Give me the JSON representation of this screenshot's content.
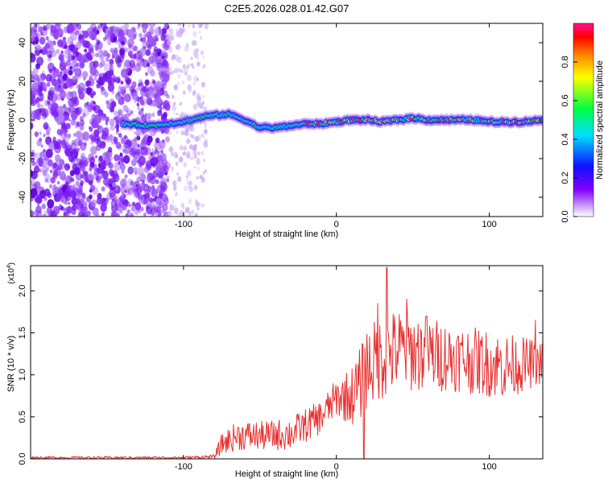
{
  "title": "C2E5.2026.028.01.42.G07",
  "chart_data": [
    {
      "type": "heatmap",
      "id": "spectrogram",
      "xlabel": "Height of straight line (km)",
      "ylabel": "Frequency (Hz)",
      "xlim": [
        -200,
        135
      ],
      "ylim": [
        -50,
        50
      ],
      "xticks": [
        -100,
        0,
        100
      ],
      "yticks": [
        -40,
        -20,
        0,
        20,
        40
      ],
      "colorbar": {
        "label": "Normalized spectral amplitude",
        "range": [
          0,
          1
        ],
        "ticks": [
          "0.0",
          "0.2",
          "0.4",
          "0.6",
          "0.8"
        ],
        "tick_values": [
          0.0,
          0.2,
          0.4,
          0.6,
          0.8
        ],
        "colors": [
          "#ffffff",
          "#d8b8f8",
          "#8000ff",
          "#1010ff",
          "#00e0ff",
          "#00ff40",
          "#ffff00",
          "#ff8000",
          "#ff0000",
          "#ff1090"
        ]
      },
      "noise_region": {
        "x_from": -200,
        "x_to": -110,
        "sparse_until": -85
      },
      "signal_band": {
        "start_x": -140,
        "centerline": [
          {
            "x": -140,
            "f": -2
          },
          {
            "x": -120,
            "f": -3
          },
          {
            "x": -100,
            "f": -1
          },
          {
            "x": -85,
            "f": 2
          },
          {
            "x": -70,
            "f": 3
          },
          {
            "x": -60,
            "f": 0
          },
          {
            "x": -50,
            "f": -4
          },
          {
            "x": -40,
            "f": -4
          },
          {
            "x": -30,
            "f": -3
          },
          {
            "x": -20,
            "f": -2
          },
          {
            "x": -10,
            "f": -2
          },
          {
            "x": 0,
            "f": -1
          },
          {
            "x": 10,
            "f": 0
          },
          {
            "x": 20,
            "f": 0
          },
          {
            "x": 30,
            "f": -1
          },
          {
            "x": 40,
            "f": 0
          },
          {
            "x": 50,
            "f": 1
          },
          {
            "x": 60,
            "f": 0
          },
          {
            "x": 70,
            "f": 0
          },
          {
            "x": 80,
            "f": 0
          },
          {
            "x": 90,
            "f": 0
          },
          {
            "x": 100,
            "f": -1
          },
          {
            "x": 110,
            "f": -1
          },
          {
            "x": 120,
            "f": -1
          },
          {
            "x": 135,
            "f": 0
          }
        ]
      }
    },
    {
      "type": "line",
      "id": "snr",
      "xlabel": "Height of straight line (km)",
      "ylabel": "SNR (10 * v/v)",
      "exponent_label": "(x10",
      "exponent_power": "4",
      "exponent_close": ")",
      "xlim": [
        -200,
        135
      ],
      "ylim": [
        0,
        2.3
      ],
      "xticks": [
        -100,
        0,
        100
      ],
      "yticks": [
        "0.0",
        "0.5",
        "1.0",
        "1.5",
        "2.0"
      ],
      "ytick_values": [
        0,
        0.5,
        1.0,
        1.5,
        2.0
      ],
      "line_color": "#e83030",
      "envelope": [
        {
          "x": -200,
          "lo": 0.0,
          "hi": 0.03
        },
        {
          "x": -100,
          "lo": 0.0,
          "hi": 0.03
        },
        {
          "x": -80,
          "lo": 0.0,
          "hi": 0.05
        },
        {
          "x": -75,
          "lo": 0.05,
          "hi": 0.3
        },
        {
          "x": -65,
          "lo": 0.1,
          "hi": 0.45
        },
        {
          "x": -45,
          "lo": 0.1,
          "hi": 0.45
        },
        {
          "x": -30,
          "lo": 0.1,
          "hi": 0.5
        },
        {
          "x": -10,
          "lo": 0.3,
          "hi": 0.7
        },
        {
          "x": 0,
          "lo": 0.5,
          "hi": 0.95
        },
        {
          "x": 10,
          "lo": 0.4,
          "hi": 1.1
        },
        {
          "x": 15,
          "lo": 0.4,
          "hi": 1.3
        },
        {
          "x": 20,
          "lo": 0.6,
          "hi": 1.6
        },
        {
          "x": 40,
          "lo": 0.8,
          "hi": 1.8
        },
        {
          "x": 80,
          "lo": 0.8,
          "hi": 1.6
        },
        {
          "x": 110,
          "lo": 0.7,
          "hi": 1.5
        },
        {
          "x": 135,
          "lo": 0.9,
          "hi": 1.4
        }
      ],
      "spikes": [
        {
          "x": 33,
          "y": 2.28
        },
        {
          "x": 46,
          "y": 1.9
        },
        {
          "x": 27,
          "y": 1.85
        },
        {
          "x": 59,
          "y": 1.7
        },
        {
          "x": 130,
          "y": 1.65
        },
        {
          "x": 18,
          "y": 0.0
        }
      ]
    }
  ]
}
